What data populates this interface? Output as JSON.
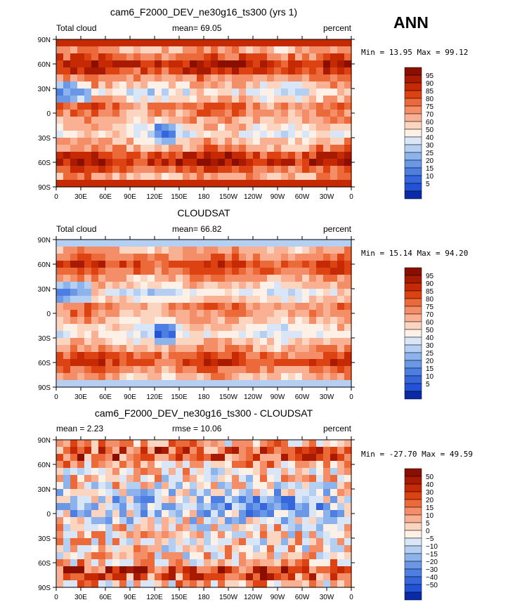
{
  "figure": {
    "season_label": "ANN"
  },
  "chart_data": [
    {
      "type": "heatmap",
      "title": "cam6_F2000_DEV_ne30g16_ts300 (yrs 1)",
      "left_label": "Total cloud",
      "center_label": "mean=  69.05",
      "right_label": "percent",
      "stats": "Min =  13.95 Max =  99.12",
      "xticks": [
        "0",
        "30E",
        "60E",
        "90E",
        "120E",
        "150E",
        "180",
        "150W",
        "120W",
        "90W",
        "60W",
        "30W",
        "0"
      ],
      "yticks": [
        "90N",
        "60N",
        "30N",
        "0",
        "30S",
        "60S",
        "90S"
      ],
      "xlim": [
        0,
        360
      ],
      "ylim": [
        -90,
        90
      ],
      "levels": [
        "95",
        "90",
        "85",
        "80",
        "75",
        "70",
        "60",
        "50",
        "40",
        "30",
        "25",
        "20",
        "15",
        "10",
        "5"
      ],
      "colors": [
        "#8b0f00",
        "#a81a02",
        "#c62a05",
        "#dc4212",
        "#ec6a3a",
        "#f48e68",
        "#f9b093",
        "#fbd5c0",
        "#fdf0e6",
        "#d8e6f7",
        "#b5cff2",
        "#8db3ec",
        "#6a97e6",
        "#4d7ee2",
        "#3566dc",
        "#2352d6",
        "#0a2aa8"
      ],
      "base": 62,
      "lat_amp": 18,
      "noise": 14,
      "seed": 11
    },
    {
      "type": "heatmap",
      "title": "CLOUDSAT",
      "left_label": "Total cloud",
      "center_label": "mean=  66.82",
      "right_label": "percent",
      "stats": "Min =  15.14 Max =  94.20",
      "xticks": [
        "0",
        "30E",
        "60E",
        "90E",
        "120E",
        "150E",
        "180",
        "150W",
        "120W",
        "90W",
        "60W",
        "30W",
        "0"
      ],
      "yticks": [
        "90N",
        "60N",
        "30N",
        "0",
        "30S",
        "60S",
        "90S"
      ],
      "xlim": [
        0,
        360
      ],
      "ylim": [
        -90,
        90
      ],
      "levels": [
        "95",
        "90",
        "85",
        "80",
        "75",
        "70",
        "60",
        "50",
        "40",
        "30",
        "25",
        "20",
        "15",
        "10",
        "5"
      ],
      "colors": [
        "#8b0f00",
        "#a81a02",
        "#c62a05",
        "#dc4212",
        "#ec6a3a",
        "#f48e68",
        "#f9b093",
        "#fbd5c0",
        "#fdf0e6",
        "#d8e6f7",
        "#b5cff2",
        "#8db3ec",
        "#6a97e6",
        "#4d7ee2",
        "#3566dc",
        "#2352d6",
        "#0a2aa8"
      ],
      "base": 60,
      "lat_amp": 14,
      "noise": 12,
      "seed": 23
    },
    {
      "type": "heatmap",
      "title": "cam6_F2000_DEV_ne30g16_ts300 - CLOUDSAT",
      "left_label": "mean =   2.23",
      "center_label": "rmse =  10.06",
      "right_label": "percent",
      "stats": "Min = -27.70 Max =  49.59",
      "xticks": [
        "0",
        "30E",
        "60E",
        "90E",
        "120E",
        "150E",
        "180",
        "150W",
        "120W",
        "90W",
        "60W",
        "30W",
        "0"
      ],
      "yticks": [
        "90N",
        "60N",
        "30N",
        "0",
        "30S",
        "60S",
        "90S"
      ],
      "xlim": [
        0,
        360
      ],
      "ylim": [
        -90,
        90
      ],
      "levels": [
        "50",
        "40",
        "30",
        "20",
        "15",
        "10",
        "5",
        "0",
        "−5",
        "−10",
        "−15",
        "−20",
        "−30",
        "−40",
        "−50"
      ],
      "colors": [
        "#8b0f00",
        "#a81a02",
        "#c62a05",
        "#dc4212",
        "#ec6a3a",
        "#f48e68",
        "#f9b093",
        "#fbd5c0",
        "#fdf0e6",
        "#d8e6f7",
        "#b5cff2",
        "#8db3ec",
        "#6a97e6",
        "#4d7ee2",
        "#3566dc",
        "#2352d6",
        "#0a2aa8"
      ],
      "base": 0.55,
      "lat_amp": 0.25,
      "noise": 0.28,
      "seed": 37
    }
  ]
}
